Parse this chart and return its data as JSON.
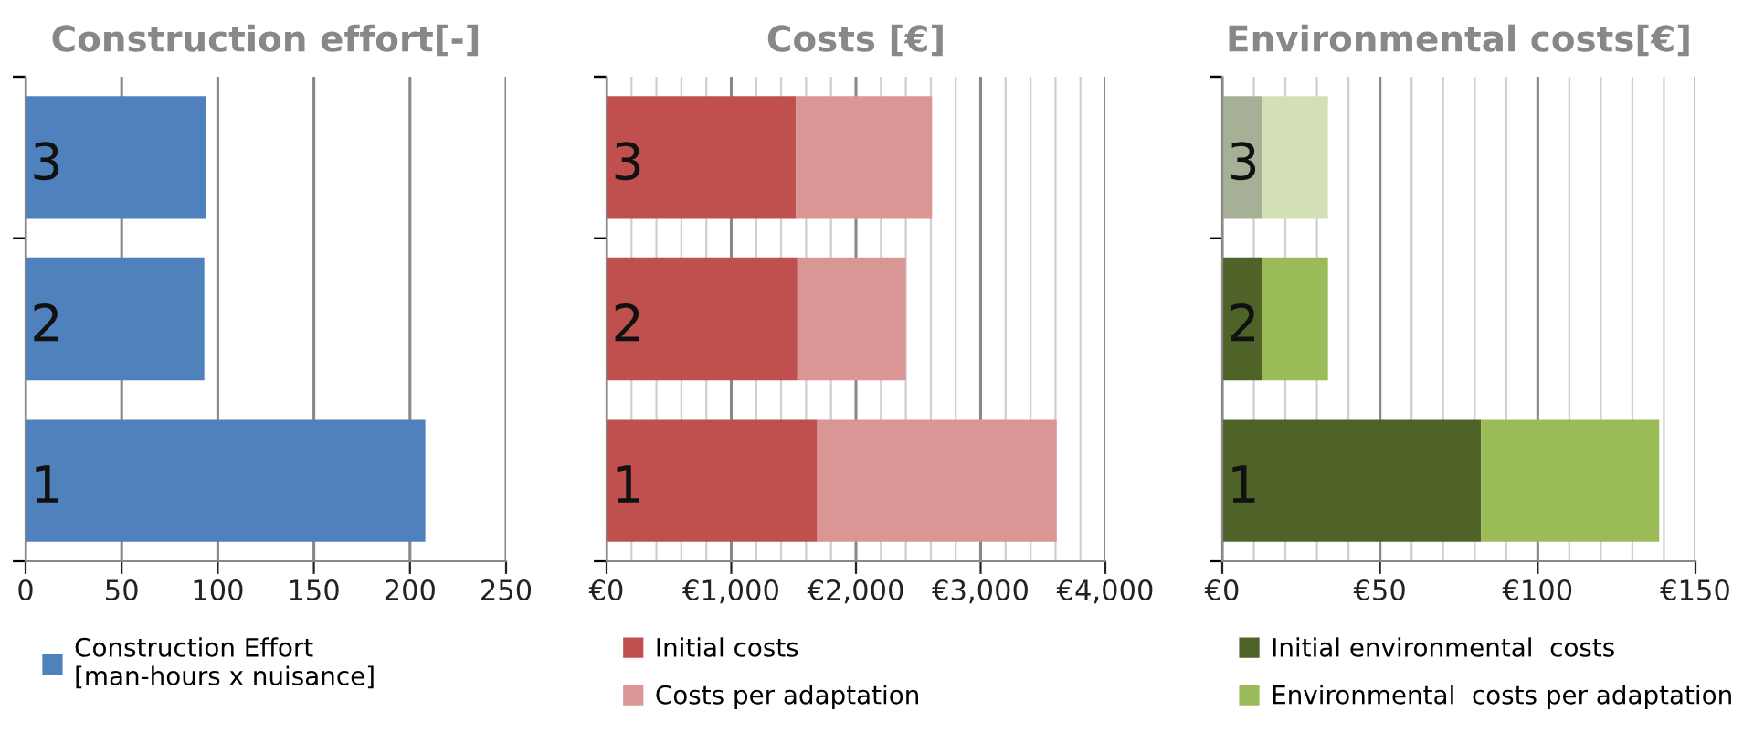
{
  "chart_data": [
    {
      "type": "bar",
      "orientation": "horizontal",
      "title": "Construction effort[-]",
      "categories": [
        "3",
        "2",
        "1"
      ],
      "series": [
        {
          "name": "Construction Effort\n[man-hours x nuisance]",
          "color": "#4f81bd",
          "values": [
            94,
            93,
            208
          ]
        }
      ],
      "xlim": [
        0,
        250
      ],
      "xticks": [
        0,
        50,
        100,
        150,
        200,
        250
      ],
      "grid": "x",
      "legend": "bottom"
    },
    {
      "type": "bar",
      "orientation": "horizontal",
      "stacked": true,
      "title": "Costs [€]",
      "categories": [
        "3",
        "2",
        "1"
      ],
      "series": [
        {
          "name": "Initial costs",
          "color": "#c0504d",
          "values": [
            1520,
            1530,
            1690
          ]
        },
        {
          "name": "Costs per adaptation",
          "color": "#d99694",
          "values": [
            1090,
            870,
            1920
          ]
        }
      ],
      "xlim": [
        0,
        4000
      ],
      "xticks": [
        {
          "value": 0,
          "label": "€0"
        },
        {
          "value": 200,
          "label": null
        },
        {
          "value": 400,
          "label": null
        },
        {
          "value": 600,
          "label": null
        },
        {
          "value": 800,
          "label": null
        },
        {
          "value": 1000,
          "label": "€1,000"
        },
        {
          "value": 1200,
          "label": null
        },
        {
          "value": 1400,
          "label": null
        },
        {
          "value": 1600,
          "label": null
        },
        {
          "value": 1800,
          "label": null
        },
        {
          "value": 2000,
          "label": "€2,000"
        },
        {
          "value": 2200,
          "label": null
        },
        {
          "value": 2400,
          "label": null
        },
        {
          "value": 2600,
          "label": null
        },
        {
          "value": 2800,
          "label": null
        },
        {
          "value": 3000,
          "label": "€3,000"
        },
        {
          "value": 3200,
          "label": null
        },
        {
          "value": 3400,
          "label": null
        },
        {
          "value": 3600,
          "label": null
        },
        {
          "value": 3800,
          "label": null
        },
        {
          "value": 4000,
          "label": "€4,000"
        }
      ],
      "grid": "x",
      "legend": "bottom"
    },
    {
      "type": "bar",
      "orientation": "horizontal",
      "stacked": true,
      "title": "Environmental costs[€]",
      "categories": [
        "3",
        "2",
        "1"
      ],
      "series": [
        {
          "name": "Initial environmental  costs",
          "color": "#4f6228",
          "colors": [
            "#a6b096",
            "#4f6228",
            "#4f6228"
          ],
          "values": [
            12.5,
            12.5,
            82
          ]
        },
        {
          "name": "Environmental  costs per adaptation",
          "color": "#9bbb59",
          "colors": [
            "#d3e0b6",
            "#9bbb59",
            "#9bbb59"
          ],
          "values": [
            21,
            21,
            56.5
          ]
        }
      ],
      "xlim": [
        0,
        150
      ],
      "xticks": [
        {
          "value": 0,
          "label": "€0"
        },
        {
          "value": 10,
          "label": null
        },
        {
          "value": 20,
          "label": null
        },
        {
          "value": 30,
          "label": null
        },
        {
          "value": 40,
          "label": null
        },
        {
          "value": 50,
          "label": "€50"
        },
        {
          "value": 60,
          "label": null
        },
        {
          "value": 70,
          "label": null
        },
        {
          "value": 80,
          "label": null
        },
        {
          "value": 90,
          "label": null
        },
        {
          "value": 100,
          "label": "€100"
        },
        {
          "value": 110,
          "label": null
        },
        {
          "value": 120,
          "label": null
        },
        {
          "value": 130,
          "label": null
        },
        {
          "value": 140,
          "label": null
        },
        {
          "value": 150,
          "label": "€150"
        }
      ],
      "grid": "x",
      "legend": "bottom"
    }
  ]
}
